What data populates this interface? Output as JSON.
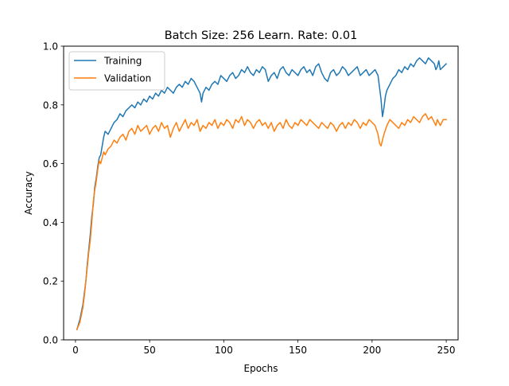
{
  "chart_data": {
    "type": "line",
    "title": "Batch Size: 256 Learn. Rate: 0.01",
    "xlabel": "Epochs",
    "ylabel": "Accuracy",
    "xlim": [
      -8,
      258
    ],
    "ylim": [
      0.0,
      1.0
    ],
    "xticks": [
      0,
      50,
      100,
      150,
      200,
      250
    ],
    "yticks": [
      0.0,
      0.2,
      0.4,
      0.6,
      0.8,
      1.0
    ],
    "xtick_labels": [
      "0",
      "50",
      "100",
      "150",
      "200",
      "250"
    ],
    "ytick_labels": [
      "0.0",
      "0.2",
      "0.4",
      "0.6",
      "0.8",
      "1.0"
    ],
    "grid": false,
    "legend_position": "top-left",
    "series": [
      {
        "name": "Training",
        "color": "#1f77b4",
        "points": [
          [
            1,
            0.035
          ],
          [
            3,
            0.07
          ],
          [
            5,
            0.12
          ],
          [
            6,
            0.16
          ],
          [
            7,
            0.2
          ],
          [
            8,
            0.26
          ],
          [
            9,
            0.31
          ],
          [
            10,
            0.36
          ],
          [
            11,
            0.42
          ],
          [
            12,
            0.46
          ],
          [
            13,
            0.52
          ],
          [
            14,
            0.55
          ],
          [
            15,
            0.59
          ],
          [
            16,
            0.62
          ],
          [
            17,
            0.63
          ],
          [
            18,
            0.66
          ],
          [
            19,
            0.69
          ],
          [
            20,
            0.71
          ],
          [
            22,
            0.7
          ],
          [
            24,
            0.72
          ],
          [
            26,
            0.74
          ],
          [
            28,
            0.75
          ],
          [
            30,
            0.77
          ],
          [
            32,
            0.76
          ],
          [
            34,
            0.78
          ],
          [
            36,
            0.79
          ],
          [
            38,
            0.8
          ],
          [
            40,
            0.79
          ],
          [
            42,
            0.81
          ],
          [
            44,
            0.8
          ],
          [
            46,
            0.82
          ],
          [
            48,
            0.81
          ],
          [
            50,
            0.83
          ],
          [
            52,
            0.82
          ],
          [
            54,
            0.84
          ],
          [
            56,
            0.83
          ],
          [
            58,
            0.85
          ],
          [
            60,
            0.84
          ],
          [
            62,
            0.86
          ],
          [
            64,
            0.85
          ],
          [
            66,
            0.84
          ],
          [
            68,
            0.86
          ],
          [
            70,
            0.87
          ],
          [
            72,
            0.86
          ],
          [
            74,
            0.88
          ],
          [
            76,
            0.87
          ],
          [
            78,
            0.89
          ],
          [
            80,
            0.88
          ],
          [
            82,
            0.86
          ],
          [
            84,
            0.84
          ],
          [
            85,
            0.81
          ],
          [
            86,
            0.84
          ],
          [
            88,
            0.86
          ],
          [
            90,
            0.85
          ],
          [
            92,
            0.87
          ],
          [
            94,
            0.88
          ],
          [
            96,
            0.87
          ],
          [
            98,
            0.9
          ],
          [
            100,
            0.89
          ],
          [
            102,
            0.88
          ],
          [
            104,
            0.9
          ],
          [
            106,
            0.91
          ],
          [
            108,
            0.89
          ],
          [
            110,
            0.9
          ],
          [
            112,
            0.92
          ],
          [
            114,
            0.91
          ],
          [
            116,
            0.93
          ],
          [
            118,
            0.91
          ],
          [
            120,
            0.9
          ],
          [
            122,
            0.92
          ],
          [
            124,
            0.91
          ],
          [
            126,
            0.93
          ],
          [
            128,
            0.92
          ],
          [
            130,
            0.88
          ],
          [
            132,
            0.9
          ],
          [
            134,
            0.91
          ],
          [
            136,
            0.89
          ],
          [
            138,
            0.92
          ],
          [
            140,
            0.93
          ],
          [
            142,
            0.91
          ],
          [
            144,
            0.9
          ],
          [
            146,
            0.92
          ],
          [
            148,
            0.91
          ],
          [
            150,
            0.9
          ],
          [
            152,
            0.92
          ],
          [
            154,
            0.93
          ],
          [
            156,
            0.91
          ],
          [
            158,
            0.92
          ],
          [
            160,
            0.9
          ],
          [
            162,
            0.93
          ],
          [
            164,
            0.94
          ],
          [
            166,
            0.91
          ],
          [
            168,
            0.89
          ],
          [
            170,
            0.88
          ],
          [
            172,
            0.91
          ],
          [
            174,
            0.92
          ],
          [
            176,
            0.9
          ],
          [
            178,
            0.91
          ],
          [
            180,
            0.93
          ],
          [
            182,
            0.92
          ],
          [
            184,
            0.9
          ],
          [
            186,
            0.91
          ],
          [
            188,
            0.92
          ],
          [
            190,
            0.93
          ],
          [
            192,
            0.9
          ],
          [
            194,
            0.91
          ],
          [
            196,
            0.92
          ],
          [
            198,
            0.9
          ],
          [
            200,
            0.91
          ],
          [
            202,
            0.92
          ],
          [
            204,
            0.9
          ],
          [
            205,
            0.86
          ],
          [
            206,
            0.82
          ],
          [
            207,
            0.76
          ],
          [
            208,
            0.79
          ],
          [
            209,
            0.83
          ],
          [
            210,
            0.85
          ],
          [
            212,
            0.87
          ],
          [
            214,
            0.89
          ],
          [
            216,
            0.9
          ],
          [
            218,
            0.92
          ],
          [
            220,
            0.91
          ],
          [
            222,
            0.93
          ],
          [
            224,
            0.92
          ],
          [
            226,
            0.94
          ],
          [
            228,
            0.93
          ],
          [
            230,
            0.95
          ],
          [
            232,
            0.96
          ],
          [
            234,
            0.95
          ],
          [
            236,
            0.94
          ],
          [
            238,
            0.96
          ],
          [
            240,
            0.95
          ],
          [
            242,
            0.94
          ],
          [
            243,
            0.92
          ],
          [
            244,
            0.93
          ],
          [
            245,
            0.95
          ],
          [
            246,
            0.92
          ],
          [
            248,
            0.93
          ],
          [
            250,
            0.94
          ]
        ]
      },
      {
        "name": "Validation",
        "color": "#ff7f0e",
        "points": [
          [
            1,
            0.035
          ],
          [
            3,
            0.06
          ],
          [
            5,
            0.11
          ],
          [
            6,
            0.15
          ],
          [
            7,
            0.2
          ],
          [
            8,
            0.25
          ],
          [
            9,
            0.3
          ],
          [
            10,
            0.34
          ],
          [
            11,
            0.4
          ],
          [
            12,
            0.47
          ],
          [
            13,
            0.51
          ],
          [
            14,
            0.54
          ],
          [
            15,
            0.58
          ],
          [
            16,
            0.61
          ],
          [
            17,
            0.6
          ],
          [
            18,
            0.62
          ],
          [
            19,
            0.64
          ],
          [
            20,
            0.63
          ],
          [
            22,
            0.65
          ],
          [
            24,
            0.66
          ],
          [
            26,
            0.68
          ],
          [
            28,
            0.67
          ],
          [
            30,
            0.69
          ],
          [
            32,
            0.7
          ],
          [
            34,
            0.68
          ],
          [
            36,
            0.71
          ],
          [
            38,
            0.72
          ],
          [
            40,
            0.7
          ],
          [
            42,
            0.73
          ],
          [
            44,
            0.71
          ],
          [
            46,
            0.72
          ],
          [
            48,
            0.73
          ],
          [
            50,
            0.7
          ],
          [
            52,
            0.72
          ],
          [
            54,
            0.73
          ],
          [
            56,
            0.71
          ],
          [
            58,
            0.74
          ],
          [
            60,
            0.72
          ],
          [
            62,
            0.73
          ],
          [
            64,
            0.69
          ],
          [
            66,
            0.72
          ],
          [
            68,
            0.74
          ],
          [
            70,
            0.71
          ],
          [
            72,
            0.73
          ],
          [
            74,
            0.75
          ],
          [
            76,
            0.72
          ],
          [
            78,
            0.74
          ],
          [
            80,
            0.73
          ],
          [
            82,
            0.75
          ],
          [
            84,
            0.71
          ],
          [
            86,
            0.73
          ],
          [
            88,
            0.72
          ],
          [
            90,
            0.74
          ],
          [
            92,
            0.73
          ],
          [
            94,
            0.75
          ],
          [
            96,
            0.72
          ],
          [
            98,
            0.74
          ],
          [
            100,
            0.73
          ],
          [
            102,
            0.75
          ],
          [
            104,
            0.74
          ],
          [
            106,
            0.72
          ],
          [
            108,
            0.75
          ],
          [
            110,
            0.74
          ],
          [
            112,
            0.76
          ],
          [
            114,
            0.73
          ],
          [
            116,
            0.75
          ],
          [
            118,
            0.74
          ],
          [
            120,
            0.72
          ],
          [
            122,
            0.74
          ],
          [
            124,
            0.75
          ],
          [
            126,
            0.73
          ],
          [
            128,
            0.74
          ],
          [
            130,
            0.72
          ],
          [
            132,
            0.74
          ],
          [
            134,
            0.71
          ],
          [
            136,
            0.73
          ],
          [
            138,
            0.74
          ],
          [
            140,
            0.72
          ],
          [
            142,
            0.75
          ],
          [
            144,
            0.73
          ],
          [
            146,
            0.72
          ],
          [
            148,
            0.74
          ],
          [
            150,
            0.73
          ],
          [
            152,
            0.75
          ],
          [
            154,
            0.74
          ],
          [
            156,
            0.73
          ],
          [
            158,
            0.75
          ],
          [
            160,
            0.74
          ],
          [
            162,
            0.73
          ],
          [
            164,
            0.72
          ],
          [
            166,
            0.74
          ],
          [
            168,
            0.73
          ],
          [
            170,
            0.72
          ],
          [
            172,
            0.74
          ],
          [
            174,
            0.73
          ],
          [
            176,
            0.71
          ],
          [
            178,
            0.73
          ],
          [
            180,
            0.74
          ],
          [
            182,
            0.72
          ],
          [
            184,
            0.74
          ],
          [
            186,
            0.73
          ],
          [
            188,
            0.75
          ],
          [
            190,
            0.74
          ],
          [
            192,
            0.72
          ],
          [
            194,
            0.74
          ],
          [
            196,
            0.73
          ],
          [
            198,
            0.75
          ],
          [
            200,
            0.74
          ],
          [
            202,
            0.73
          ],
          [
            204,
            0.7
          ],
          [
            205,
            0.67
          ],
          [
            206,
            0.66
          ],
          [
            207,
            0.68
          ],
          [
            208,
            0.7
          ],
          [
            210,
            0.73
          ],
          [
            212,
            0.75
          ],
          [
            214,
            0.74
          ],
          [
            216,
            0.73
          ],
          [
            218,
            0.72
          ],
          [
            220,
            0.74
          ],
          [
            222,
            0.73
          ],
          [
            224,
            0.75
          ],
          [
            226,
            0.74
          ],
          [
            228,
            0.76
          ],
          [
            230,
            0.75
          ],
          [
            232,
            0.74
          ],
          [
            234,
            0.76
          ],
          [
            236,
            0.77
          ],
          [
            238,
            0.75
          ],
          [
            240,
            0.76
          ],
          [
            242,
            0.74
          ],
          [
            243,
            0.73
          ],
          [
            244,
            0.75
          ],
          [
            246,
            0.73
          ],
          [
            248,
            0.75
          ],
          [
            250,
            0.75
          ]
        ]
      }
    ]
  }
}
